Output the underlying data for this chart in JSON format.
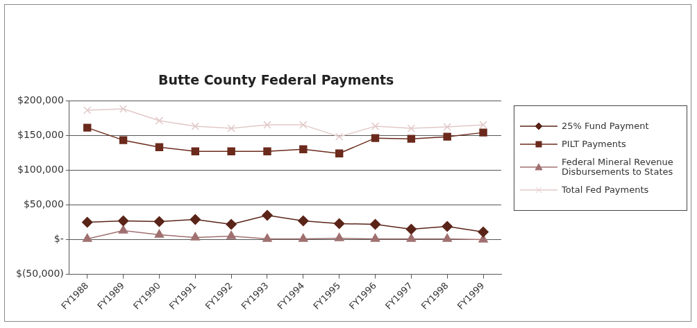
{
  "chart_data": {
    "type": "line",
    "title": "Butte County Federal Payments",
    "categories": [
      "FY1988",
      "FY1989",
      "FY1990",
      "FY1991",
      "FY1992",
      "FY1993",
      "FY1994",
      "FY1995",
      "FY1996",
      "FY1997",
      "FY1998",
      "FY1999"
    ],
    "series": [
      {
        "name": "25% Fund Payment",
        "color": "#5a2418",
        "marker": "diamond",
        "values": [
          25000,
          27000,
          26000,
          29000,
          22000,
          35000,
          27000,
          23000,
          22000,
          15000,
          19000,
          11000
        ]
      },
      {
        "name": "PILT Payments",
        "color": "#6b2a1c",
        "marker": "square",
        "values": [
          161000,
          143000,
          133000,
          127000,
          127000,
          127000,
          130000,
          124000,
          146000,
          145000,
          148000,
          154000
        ]
      },
      {
        "name": "Federal Mineral Revenue Disbursements to States",
        "color": "#a07070",
        "marker": "triangle",
        "values": [
          1000,
          13000,
          7000,
          3000,
          5000,
          1000,
          1000,
          2000,
          1000,
          1000,
          1000,
          0
        ]
      },
      {
        "name": "Total Fed Payments",
        "color": "#e2c8c8",
        "marker": "cross",
        "values": [
          186000,
          188000,
          171000,
          163000,
          160000,
          165000,
          165000,
          148000,
          163000,
          160000,
          162000,
          165000
        ]
      }
    ],
    "ylim": [
      -50000,
      200000
    ],
    "yticks": [
      {
        "value": -50000,
        "label": "$(50,000)"
      },
      {
        "value": 0,
        "label": "$-"
      },
      {
        "value": 50000,
        "label": "$50,000"
      },
      {
        "value": 100000,
        "label": "$100,000"
      },
      {
        "value": 150000,
        "label": "$150,000"
      },
      {
        "value": 200000,
        "label": "$200,000"
      }
    ],
    "grid": "y",
    "legend": "right",
    "line_style": "solid"
  }
}
